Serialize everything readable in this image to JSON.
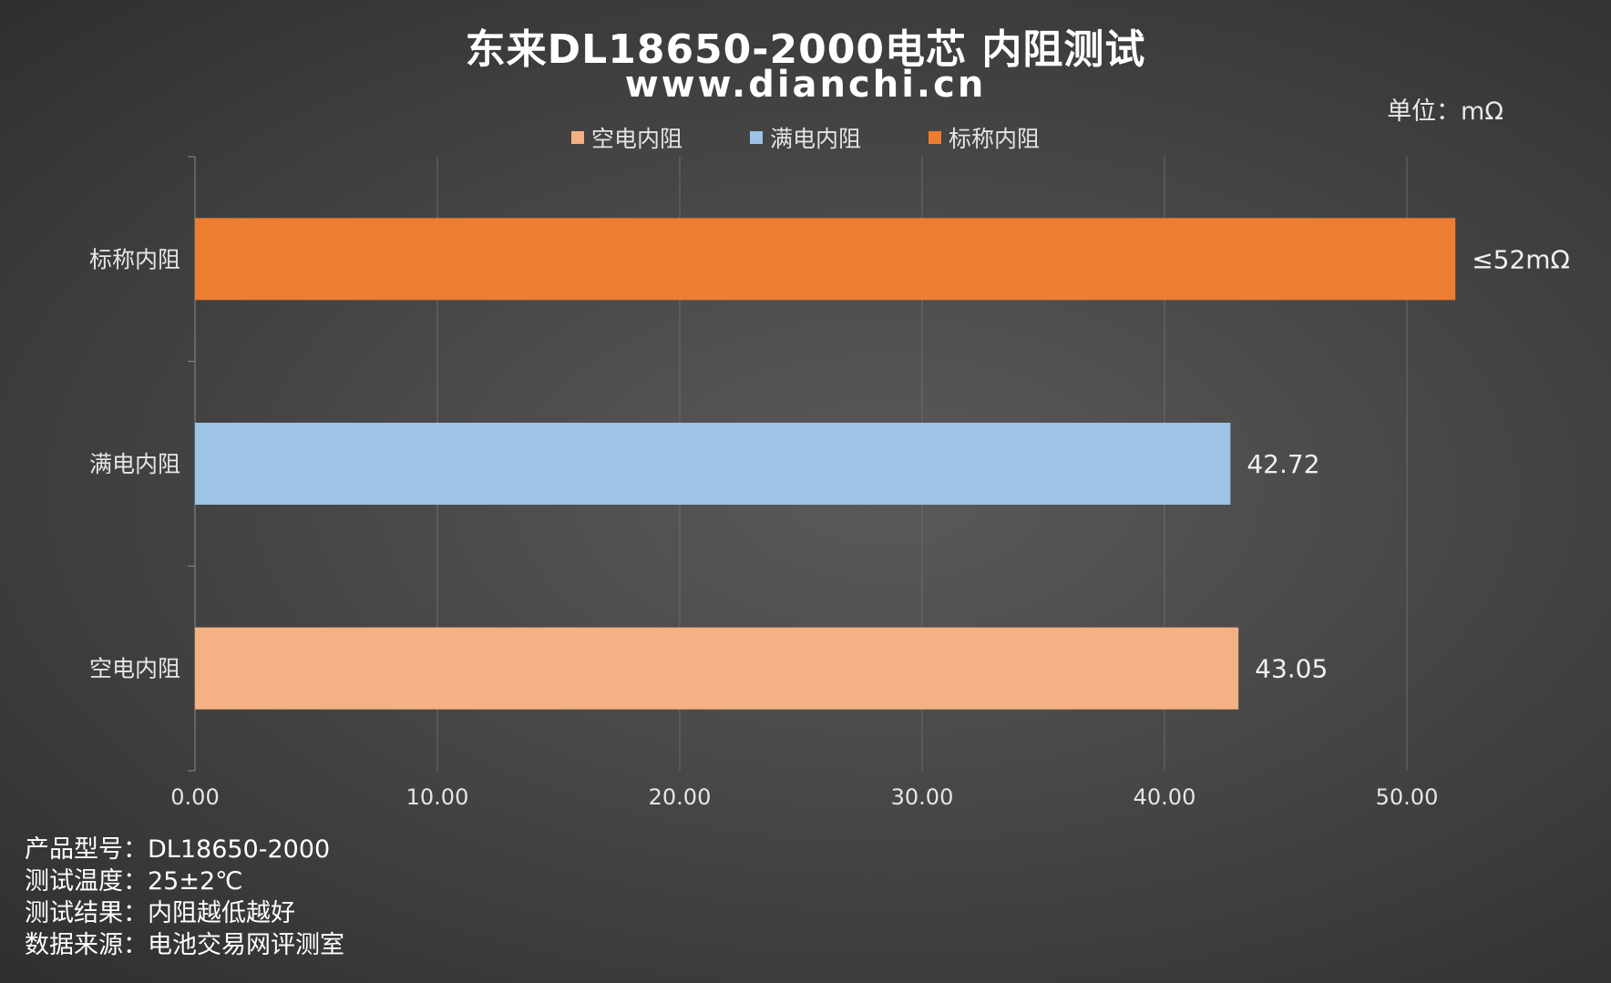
{
  "title": "东来DL18650-2000电芯 内阻测试",
  "subtitle": "www.dianchi.cn",
  "unit": "单位：mΩ",
  "colors": {
    "empty": "#f4b183",
    "full": "#9dc3e6",
    "nominal": "#ed7d31",
    "grid": "#6b6b6b",
    "axis": "#8a8a8a"
  },
  "legend": [
    {
      "label": "空电内阻",
      "color": "#f4b183"
    },
    {
      "label": "满电内阻",
      "color": "#9dc3e6"
    },
    {
      "label": "标称内阻",
      "color": "#ed7d31"
    }
  ],
  "chart_data": {
    "type": "bar",
    "orientation": "horizontal",
    "categories": [
      "标称内阻",
      "满电内阻",
      "空电内阻"
    ],
    "series": [
      {
        "name": "标称内阻",
        "values": [
          52,
          null,
          null
        ],
        "labels": [
          "≤52mΩ",
          null,
          null
        ]
      },
      {
        "name": "满电内阻",
        "values": [
          null,
          42.72,
          null
        ],
        "labels": [
          null,
          "42.72",
          null
        ]
      },
      {
        "name": "空电内阻",
        "values": [
          null,
          null,
          43.05
        ],
        "labels": [
          null,
          null,
          "43.05"
        ]
      }
    ],
    "bar_colors": [
      "#ed7d31",
      "#9dc3e6",
      "#f4b183"
    ],
    "value_labels": [
      "≤52mΩ",
      "42.72",
      "43.05"
    ],
    "values": [
      52,
      42.72,
      43.05
    ],
    "xlim": [
      0,
      50
    ],
    "xticks": [
      "0.00",
      "10.00",
      "20.00",
      "30.00",
      "40.00",
      "50.00"
    ],
    "xtick_values": [
      0,
      10,
      20,
      30,
      40,
      50
    ],
    "grid": true,
    "legend_position": "top"
  },
  "notes": [
    {
      "label": "产品型号：",
      "value": "DL18650-2000"
    },
    {
      "label": "测试温度：",
      "value": "25±2℃"
    },
    {
      "label": "测试结果：",
      "value": "内阻越低越好"
    },
    {
      "label": "数据来源：",
      "value": "电池交易网评测室"
    }
  ]
}
